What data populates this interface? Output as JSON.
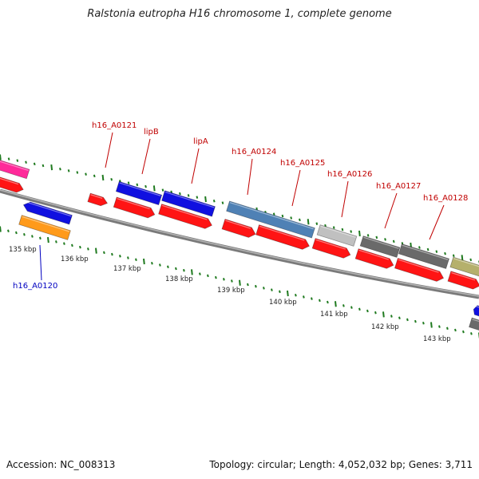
{
  "title": "Ralstonia eutropha H16 chromosome 1, complete genome",
  "footer": {
    "accession": "Accession: NC_008313",
    "summary": "Topology: circular; Length: 4,052,032 bp; Genes: 3,711"
  },
  "colors": {
    "backbone": "#8c8c8c",
    "tick": "#1f7a1f",
    "label_plus": "#c00000",
    "label_minus": "#0000c0",
    "cds": "#ff1414",
    "gene_blue": "#1010e0",
    "gene_steel": "#4f81b5",
    "gene_lightgray": "#c0c0c0",
    "gene_darkgray": "#6a6a6a",
    "gene_khaki": "#b5b06c",
    "gene_pink": "#ff2a9a",
    "gene_orange": "#ff9a1a"
  },
  "scale": {
    "labels": [
      "135 kbp",
      "136 kbp",
      "137 kbp",
      "138 kbp",
      "139 kbp",
      "140 kbp",
      "141 kbp",
      "142 kbp",
      "143 kbp"
    ]
  },
  "gene_labels": [
    {
      "text": "h16_A0121",
      "strand": "plus"
    },
    {
      "text": "lipB",
      "strand": "plus"
    },
    {
      "text": "lipA",
      "strand": "plus"
    },
    {
      "text": "h16_A0124",
      "strand": "plus"
    },
    {
      "text": "h16_A0125",
      "strand": "plus"
    },
    {
      "text": "h16_A0126",
      "strand": "plus"
    },
    {
      "text": "h16_A0127",
      "strand": "plus"
    },
    {
      "text": "h16_A0128",
      "strand": "plus"
    },
    {
      "text": "h16_A0120",
      "strand": "minus"
    }
  ]
}
